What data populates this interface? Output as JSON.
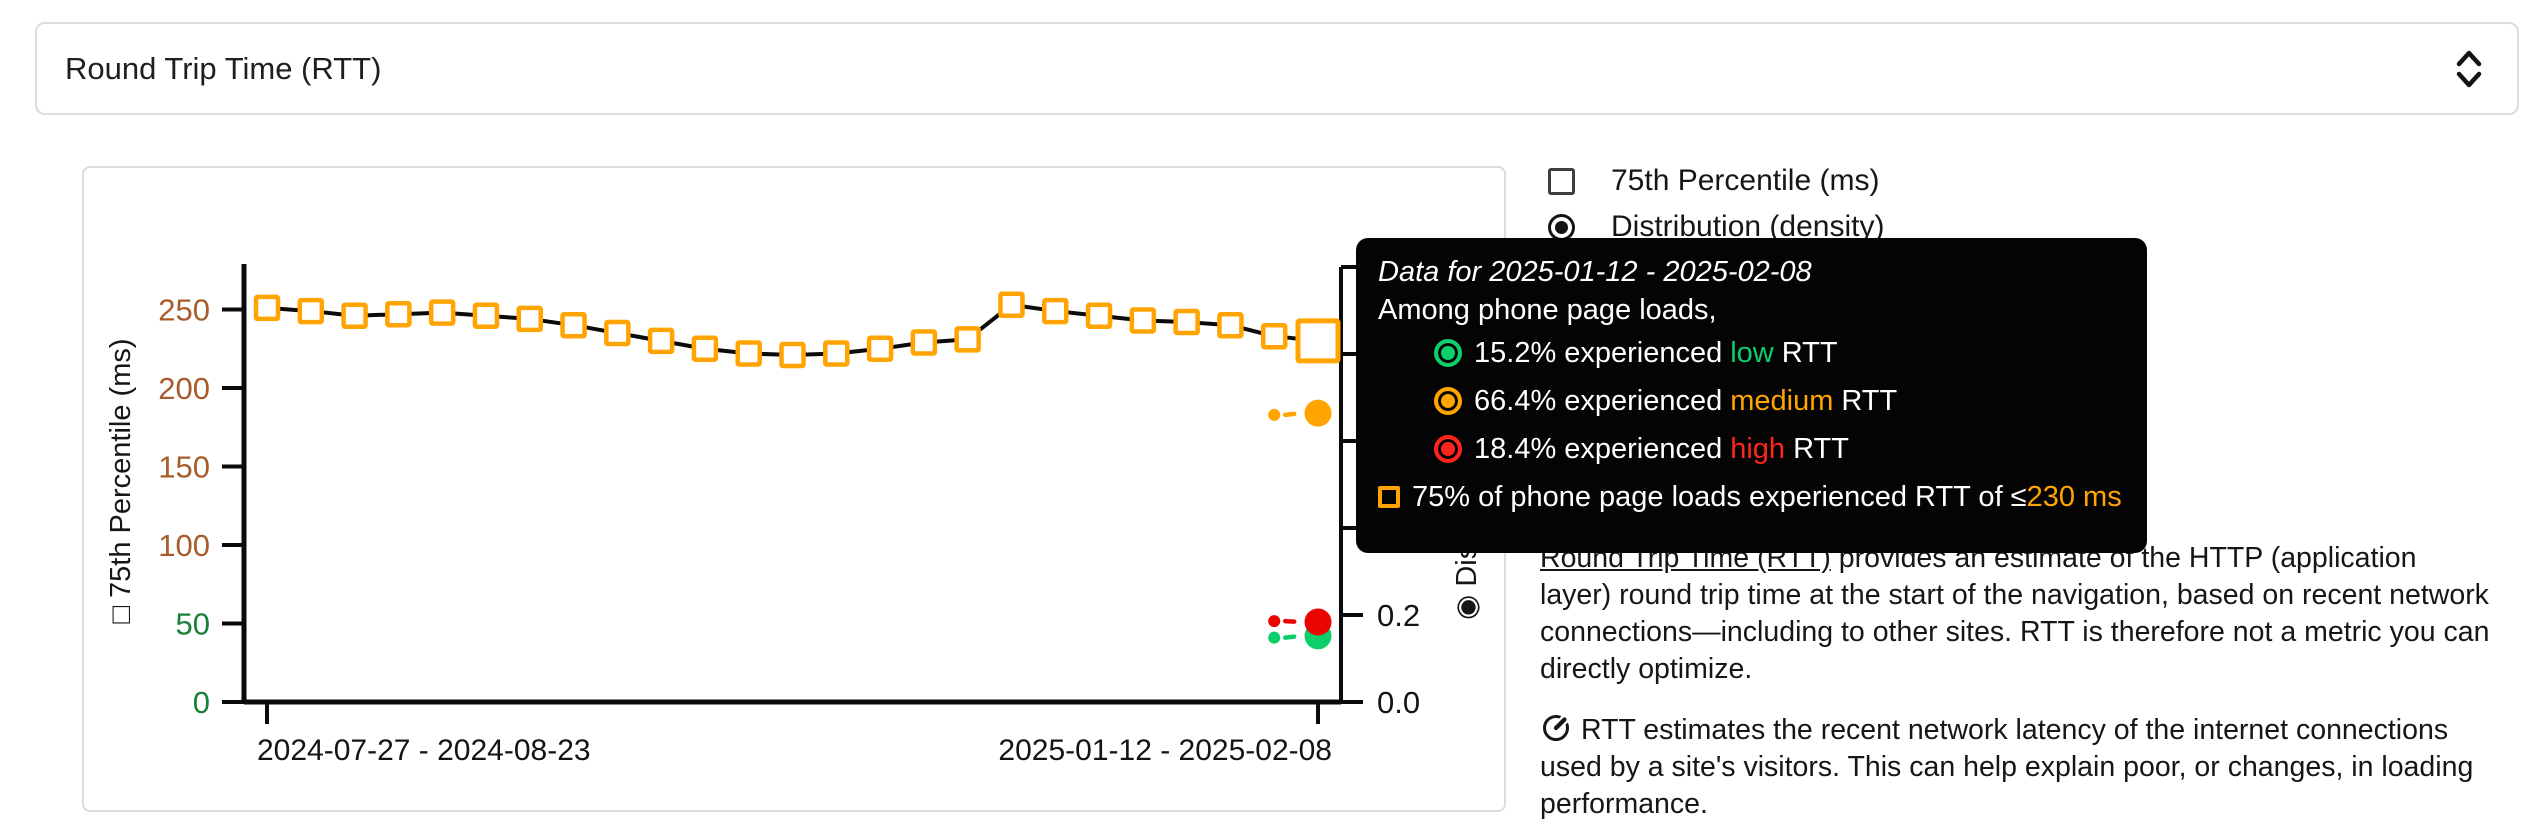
{
  "metric_selector": {
    "label": "Round Trip Time (RTT)",
    "icon": "updown-chevron"
  },
  "legend": {
    "percentile_label": "75th Percentile (ms)",
    "distribution_label": "Distribution (density)",
    "percentile_checked": false,
    "distribution_checked": true
  },
  "chart_data": {
    "type": "line",
    "series_name": "75th Percentile (ms)",
    "series_marker_color": "#FFA400",
    "line_color": "#0b0b0b",
    "y_left_title": "□ 75th Percentile (ms)",
    "y_right_title": "◉ Distribution (density)",
    "y_left_ticks": [
      {
        "label": "250",
        "value": 250,
        "color": "#A85B2B"
      },
      {
        "label": "200",
        "value": 200,
        "color": "#A85B2B"
      },
      {
        "label": "150",
        "value": 150,
        "color": "#A85B2B"
      },
      {
        "label": "100",
        "value": 100,
        "color": "#A85B2B"
      },
      {
        "label": "50",
        "value": 50,
        "color": "#188038"
      },
      {
        "label": "0",
        "value": 0,
        "color": "#188038"
      }
    ],
    "y_left_lim": [
      0,
      275
    ],
    "y_right_lim": [
      0,
      1.0
    ],
    "y_right_tick_marks": [
      0,
      0.2,
      0.4,
      0.6,
      0.8,
      1.0
    ],
    "y_right_tick_labels": [
      {
        "label": "0.2",
        "value": 0.2
      },
      {
        "label": "0.0",
        "value": 0.0
      }
    ],
    "x_tick_labels": [
      "2024-07-27 - 2024-08-23",
      "2025-01-12 - 2025-02-08"
    ],
    "p75_values": [
      251,
      249,
      246,
      247,
      248,
      246,
      244,
      240,
      235,
      230,
      225,
      222,
      221,
      222,
      225,
      229,
      231,
      253,
      249,
      246,
      243,
      242,
      240,
      233,
      230
    ],
    "hovered_point_index": 24,
    "distribution_series": [
      {
        "name": "low",
        "color": "#0CCE6B",
        "values": [
          0.148,
          0.152
        ]
      },
      {
        "name": "medium",
        "color": "#FFA400",
        "values": [
          0.66,
          0.664
        ]
      },
      {
        "name": "high",
        "color": "#EB0400",
        "values": [
          0.186,
          0.184
        ]
      }
    ]
  },
  "tooltip": {
    "title": "Data for 2025-01-12 - 2025-02-08",
    "intro": "Among phone page loads,",
    "word_experienced": "experienced",
    "word_rtt": "RTT",
    "rows": [
      {
        "percent": "15.2%",
        "level": "low",
        "color": "#0CCE6B"
      },
      {
        "percent": "66.4%",
        "level": "medium",
        "color": "#FFA400"
      },
      {
        "percent": "18.4%",
        "level": "high",
        "color": "#FF241C"
      }
    ],
    "p75_prefix": "75% of phone page loads experienced RTT of ≤",
    "p75_value": "230 ms",
    "p75_value_color": "#FFA400"
  },
  "description": {
    "link_text": "Round Trip Time (RTT)",
    "p1_rest": " provides an estimate of the HTTP (application layer) round trip time at the start of the navigation, based on recent network connections—including to other sites. RTT is therefore not a metric you can directly optimize.",
    "p2_icon": "speedometer",
    "p2": "RTT estimates the recent network latency of the internet connections used by a site's visitors. This can help explain poor, or changes, in loading performance."
  }
}
